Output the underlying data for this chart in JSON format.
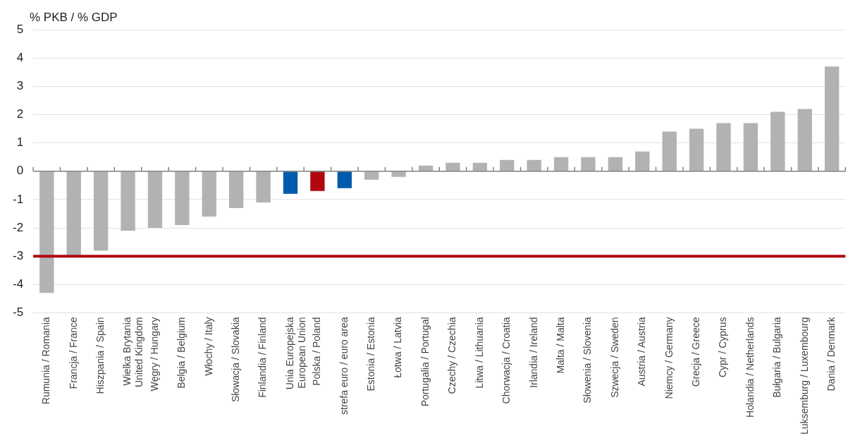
{
  "chart_data": {
    "type": "bar",
    "ylabel": "% PKB / % GDP",
    "categories": [
      "Rumunia / Romania",
      "Francja / France",
      "Hiszpania / Spain",
      "Wielka Brytania\nUnited Kingdom",
      "Węgry / Hungary",
      "Belgia / Belgium",
      "Włochy / Italy",
      "Słowacja / Slovakia",
      "Finlandia / Finland",
      "Unia Europejska\nEuropean Union",
      "Polska / Poland",
      "strefa euro / euro area",
      "Estonia / Estonia",
      "Łotwa / Latvia",
      "Portugalia / Portugal",
      "Czechy / Czechia",
      "Litwa / Lithuania",
      "Chorwacja / Croatia",
      "Irlandia / Ireland",
      "Malta / Malta",
      "Słowenia / Slovenia",
      "Szwecja / Sweden",
      "Austria / Austria",
      "Niemcy / Germany",
      "Grecja / Greece",
      "Cypr / Cyprus",
      "Holandia / Netherlands",
      "Bułgaria / Bulgaria",
      "Luksemburg / Luxembourg",
      "Dania / Denmark"
    ],
    "values": [
      -4.3,
      -3.0,
      -2.8,
      -2.1,
      -2.0,
      -1.9,
      -1.6,
      -1.3,
      -1.1,
      -0.8,
      -0.7,
      -0.6,
      -0.3,
      -0.2,
      0.2,
      0.3,
      0.3,
      0.4,
      0.4,
      0.5,
      0.5,
      0.5,
      0.7,
      1.4,
      1.5,
      1.7,
      1.7,
      2.1,
      2.2,
      3.7
    ],
    "colors": [
      "#b1b2b4",
      "#b1b2b4",
      "#b1b2b4",
      "#b1b2b4",
      "#b1b2b4",
      "#b1b2b4",
      "#b1b2b4",
      "#b1b2b4",
      "#b1b2b4",
      "#005bac",
      "#b1080f",
      "#005bac",
      "#b1b2b4",
      "#b1b2b4",
      "#b1b2b4",
      "#b1b2b4",
      "#b1b2b4",
      "#b1b2b4",
      "#b1b2b4",
      "#b1b2b4",
      "#b1b2b4",
      "#b1b2b4",
      "#b1b2b4",
      "#b1b2b4",
      "#b1b2b4",
      "#b1b2b4",
      "#b1b2b4",
      "#b1b2b4",
      "#b1b2b4",
      "#b1b2b4"
    ],
    "ylim": [
      -5,
      5
    ],
    "yticks": [
      -5,
      -4,
      -3,
      -2,
      -1,
      0,
      1,
      2,
      3,
      4,
      5
    ],
    "grid": "y",
    "legend": false,
    "ref_lines": [
      {
        "axis": "y",
        "value": -3,
        "color": "#b1080f"
      }
    ]
  }
}
